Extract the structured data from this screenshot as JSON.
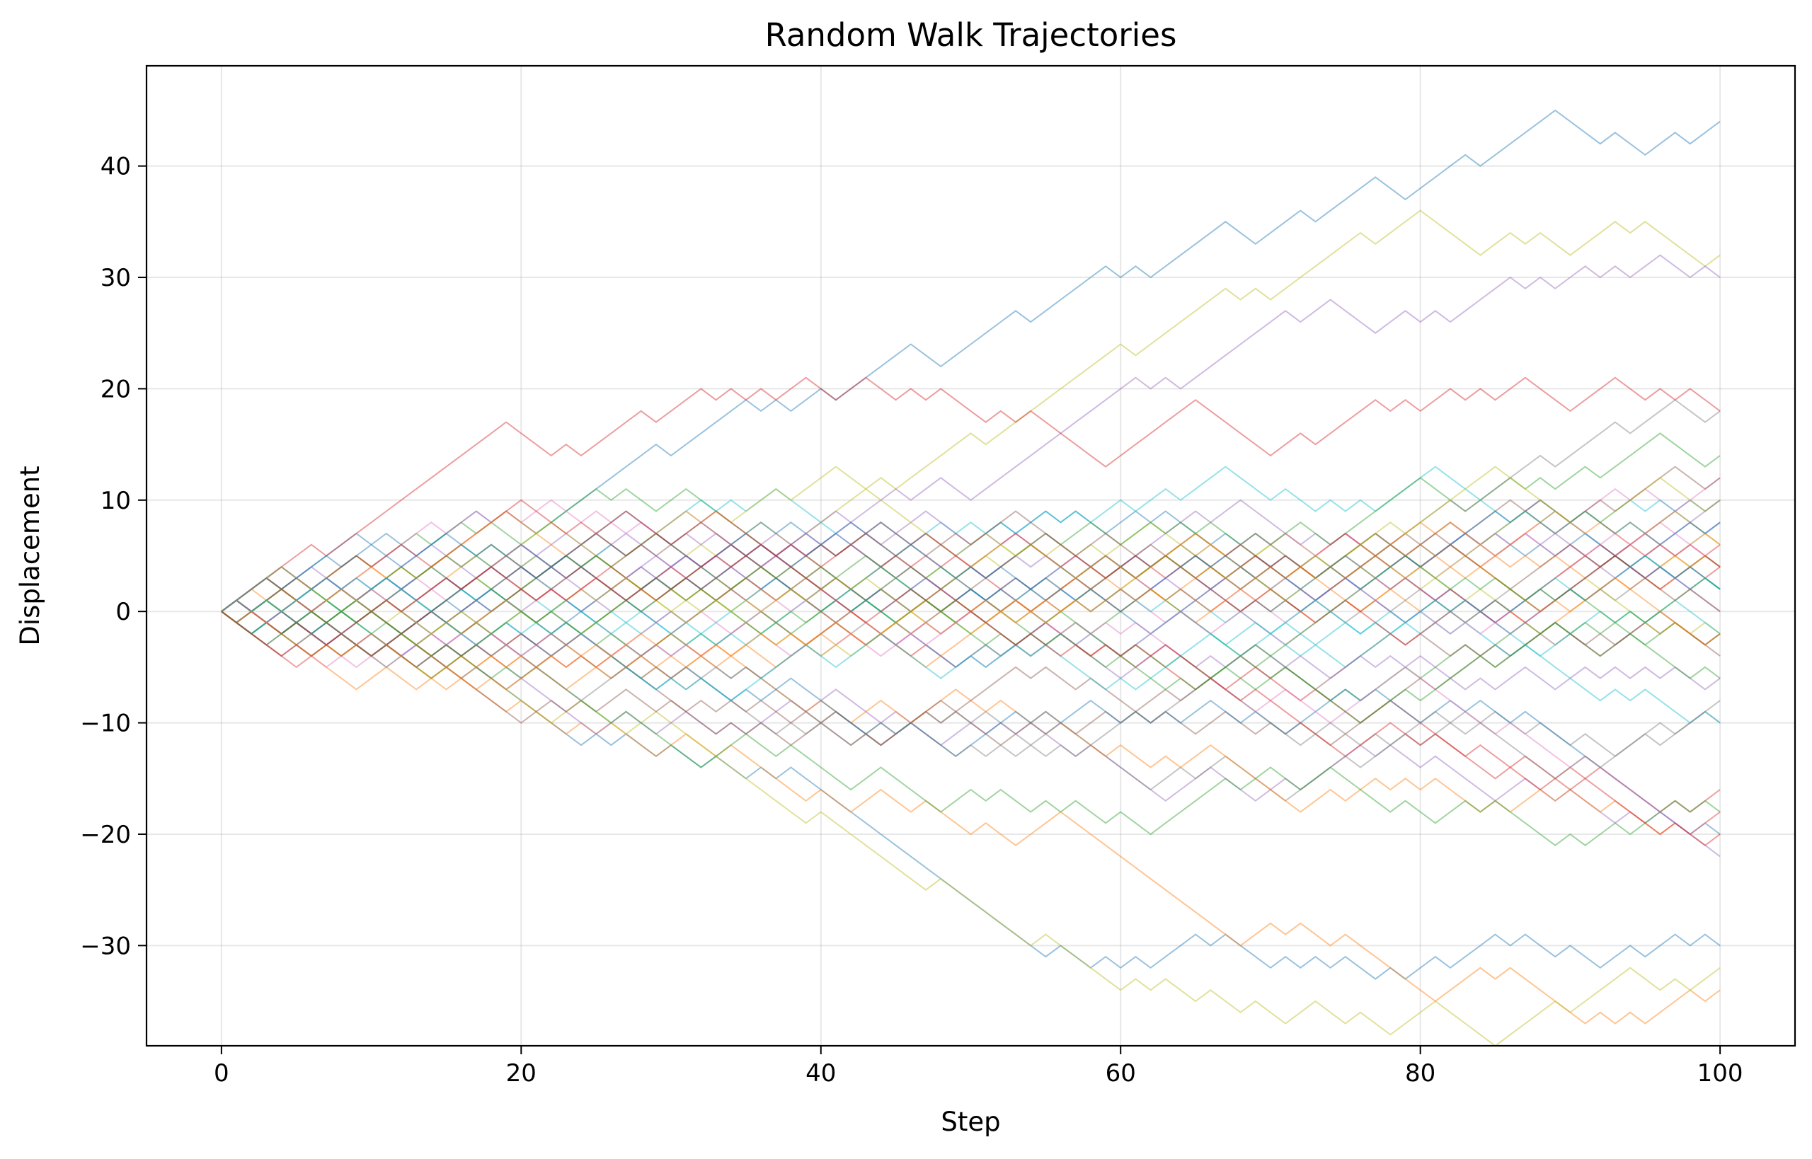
{
  "chart_data": {
    "type": "line",
    "title": "Random Walk Trajectories",
    "xlabel": "Step",
    "ylabel": "Displacement",
    "xlim": [
      -5,
      105
    ],
    "ylim": [
      -39,
      49
    ],
    "xticks": [
      0,
      20,
      40,
      60,
      80,
      100
    ],
    "yticks": [
      -30,
      -20,
      -10,
      0,
      10,
      20,
      30,
      40
    ],
    "xtick_labels": [
      "0",
      "20",
      "40",
      "60",
      "80",
      "100"
    ],
    "ytick_labels": [
      "−30",
      "−20",
      "−10",
      "0",
      "10",
      "20",
      "30",
      "40"
    ],
    "grid": true,
    "legend": "none",
    "series_count": 50,
    "steps": 100,
    "step_size": 1,
    "start_value": 0,
    "colors": [
      "#1f77b4",
      "#ff7f0e",
      "#2ca02c",
      "#d62728",
      "#9467bd",
      "#8c564b",
      "#e377c2",
      "#7f7f7f",
      "#bcbd22",
      "#17becf"
    ],
    "line_alpha": 0.45,
    "highlighted_series": [
      {
        "final": 44,
        "max": 45,
        "min": 0,
        "color": "#1f77b4"
      },
      {
        "final": 32,
        "max": 32,
        "min": 0,
        "color": "#bcbd22"
      },
      {
        "final": 30,
        "max": 30,
        "min": 0,
        "color": "#9467bd"
      },
      {
        "final": -30,
        "max": 0,
        "min": -31,
        "color": "#1f77b4"
      },
      {
        "final": -34,
        "max": 0,
        "min": -35,
        "color": "#ff7f0e"
      },
      {
        "final": -32,
        "max": 0,
        "min": -35,
        "color": "#bcbd22"
      }
    ]
  }
}
